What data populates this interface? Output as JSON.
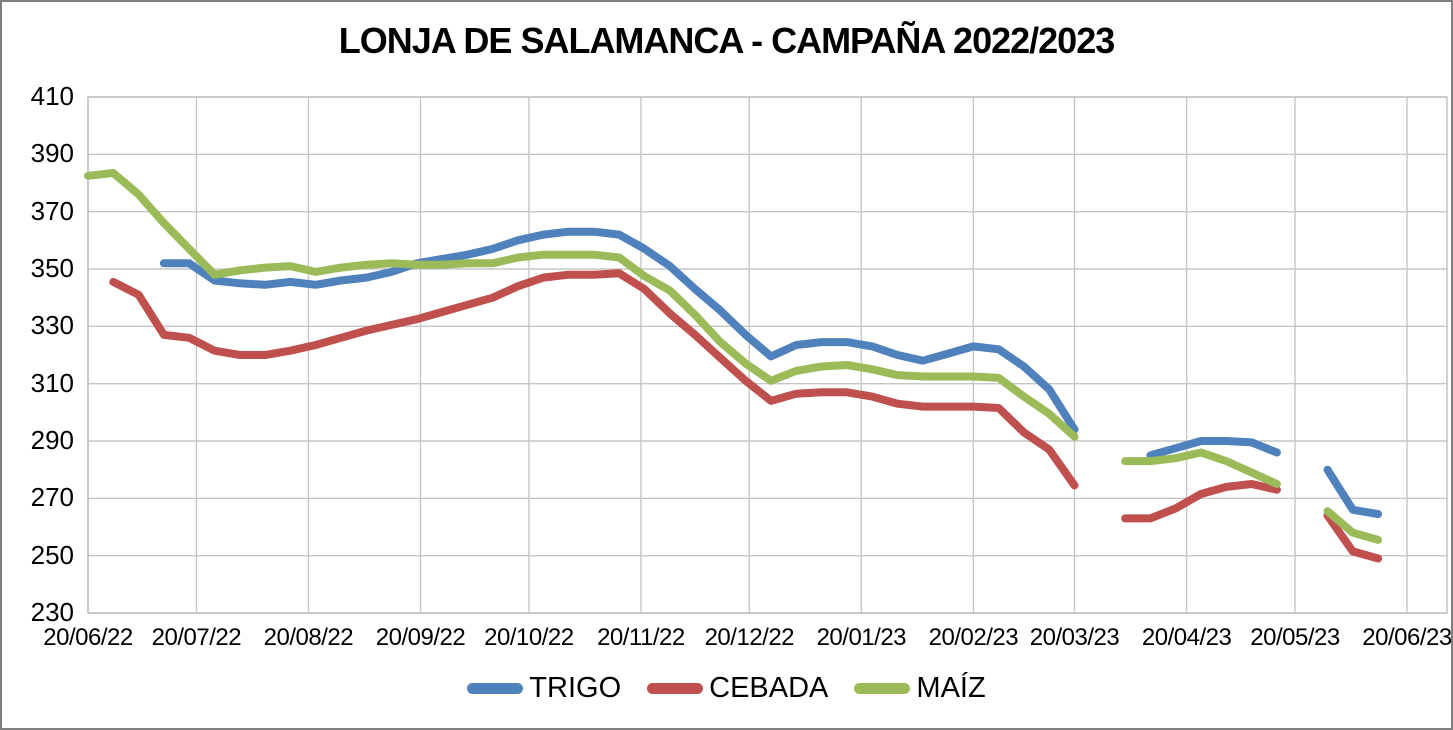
{
  "title": "LONJA DE SALAMANCA - CAMPAÑA 2022/2023",
  "legend": [
    {
      "label": "TRIGO",
      "color": "#4F81BD"
    },
    {
      "label": "CEBADA",
      "color": "#C0504D"
    },
    {
      "label": "MAÍZ",
      "color": "#9BBB59"
    }
  ],
  "colors": {
    "gridline": "#C6C6C6",
    "plot_border": "#BFBFBF",
    "frame_border": "#7F7F7F",
    "text": "#000000",
    "background": "#FFFFFF"
  },
  "chart_data": {
    "type": "line",
    "title": "LONJA DE SALAMANCA - CAMPAÑA 2022/2023",
    "xlabel": "",
    "ylabel": "",
    "ylim": [
      230,
      410
    ],
    "grid": true,
    "legend_position": "bottom",
    "y_ticks": [
      410,
      390,
      370,
      350,
      330,
      310,
      290,
      270,
      250,
      230
    ],
    "x_tick_labels": [
      "20/06/22",
      "20/07/22",
      "20/08/22",
      "20/09/22",
      "20/10/22",
      "20/11/22",
      "20/12/22",
      "20/01/23",
      "20/02/23",
      "20/03/23",
      "20/04/23",
      "20/05/23",
      "20/06/23"
    ],
    "x_tick_days": [
      0,
      30,
      61,
      92,
      122,
      153,
      183,
      214,
      245,
      273,
      304,
      334,
      365
    ],
    "x_axis_span_days": 365,
    "x_days": [
      0,
      7,
      14,
      21,
      28,
      35,
      42,
      49,
      56,
      63,
      70,
      77,
      84,
      91,
      98,
      105,
      112,
      119,
      126,
      133,
      140,
      147,
      154,
      161,
      168,
      175,
      182,
      189,
      196,
      203,
      210,
      217,
      224,
      231,
      238,
      245,
      252,
      259,
      266,
      273,
      280,
      287,
      294,
      301,
      308,
      315,
      322,
      329,
      336,
      343,
      350,
      357
    ],
    "series": [
      {
        "name": "TRIGO",
        "color": "#4F81BD",
        "values": [
          null,
          null,
          null,
          352,
          352,
          346,
          345,
          344.5,
          345.5,
          344.5,
          346,
          347,
          349,
          352,
          353.5,
          355,
          357,
          360,
          362,
          363,
          363,
          362,
          357,
          351,
          343,
          335.5,
          327,
          319.5,
          323.5,
          324.5,
          324.5,
          323,
          320,
          318,
          320.5,
          323,
          322,
          316,
          308,
          294,
          null,
          null,
          285,
          287.5,
          290,
          290,
          289.5,
          286,
          null,
          280,
          266,
          264.5
        ]
      },
      {
        "name": "CEBADA",
        "color": "#C0504D",
        "values": [
          null,
          345.5,
          341,
          327,
          326,
          321.5,
          320,
          320,
          321.5,
          323.5,
          326,
          328.5,
          330.5,
          332.5,
          335,
          337.5,
          340,
          344,
          347,
          348,
          348,
          348.5,
          343,
          334.5,
          327,
          319,
          311,
          304,
          306.5,
          307,
          307,
          305.5,
          303,
          302,
          302,
          302,
          301.5,
          293,
          287,
          274.5,
          null,
          263,
          263,
          266.5,
          271.5,
          274,
          275,
          273,
          null,
          264,
          251.5,
          249
        ]
      },
      {
        "name": "MAÍZ",
        "color": "#9BBB59",
        "values": [
          382.5,
          383.5,
          376,
          366,
          357,
          348,
          349.5,
          350.5,
          351,
          349,
          350.5,
          351.5,
          352,
          351.5,
          351.5,
          352,
          352,
          354,
          355,
          355,
          355,
          354,
          347.5,
          342.5,
          334,
          324.5,
          317,
          311,
          314.5,
          316,
          316.5,
          315,
          313,
          312.5,
          312.5,
          312.5,
          312,
          305.5,
          299.5,
          291.5,
          null,
          283,
          283,
          284,
          286,
          283,
          279,
          275,
          null,
          265.5,
          258,
          255.5
        ]
      }
    ]
  }
}
